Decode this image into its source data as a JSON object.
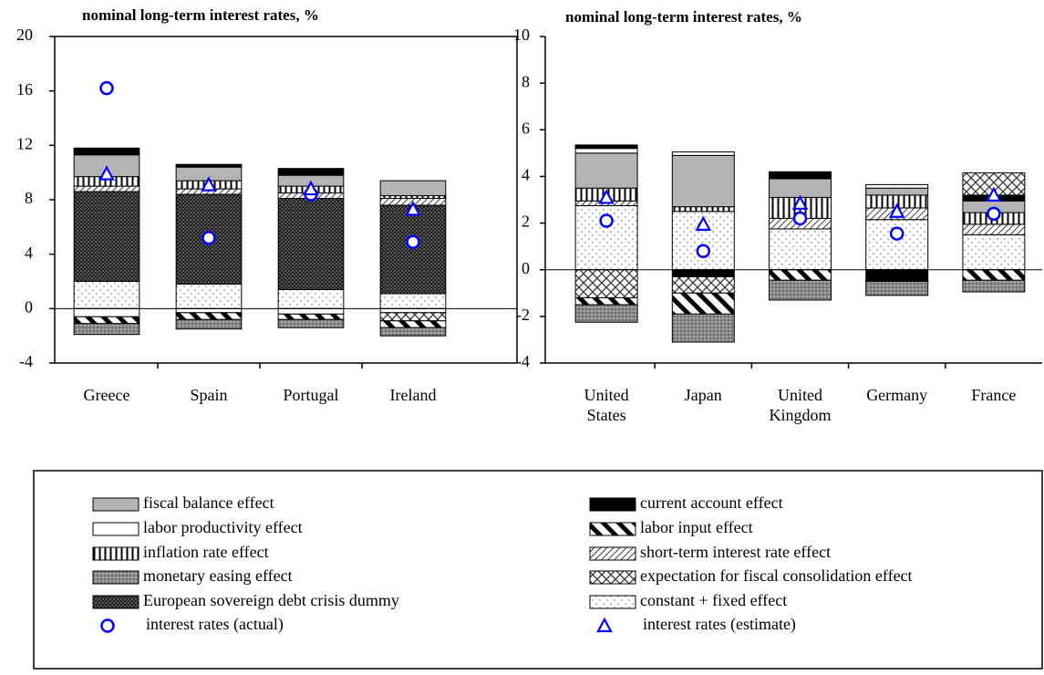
{
  "chart_data": [
    {
      "type": "bar",
      "title": "nominal long-term interest rates, %",
      "categories": [
        "Greece",
        "Spain",
        "Portugal",
        "Ireland"
      ],
      "ylim": [
        -4,
        20
      ],
      "yticks": [
        -4,
        0,
        4,
        8,
        12,
        16,
        20
      ],
      "series": [
        {
          "name": "constant + fixed effect",
          "values": [
            2.0,
            1.8,
            1.4,
            1.1
          ]
        },
        {
          "name": "European sovereign debt crisis dummy",
          "values": [
            6.6,
            6.6,
            6.7,
            6.5
          ]
        },
        {
          "name": "short-term interest rate effect",
          "values": [
            0.4,
            0.4,
            0.4,
            0.5
          ]
        },
        {
          "name": "inflation rate effect",
          "values": [
            0.7,
            0.6,
            0.5,
            0.2
          ]
        },
        {
          "name": "fiscal balance effect",
          "values": [
            1.6,
            1.0,
            0.8,
            1.1
          ]
        },
        {
          "name": "labor productivity effect",
          "values": [
            -0.6,
            -0.3,
            -0.4,
            -0.3
          ]
        },
        {
          "name": "current account effect",
          "values": [
            0.5,
            0.2,
            0.5,
            0
          ]
        },
        {
          "name": "expectation for fiscal consolidation effect",
          "values": [
            0,
            0,
            0,
            -0.6
          ]
        },
        {
          "name": "labor input effect",
          "values": [
            -0.5,
            -0.5,
            -0.4,
            -0.5
          ]
        },
        {
          "name": "monetary easing effect",
          "values": [
            -0.8,
            -0.7,
            -0.6,
            -0.6
          ]
        },
        {
          "name": "interest rates (actual)",
          "marker": "circle",
          "color": "#0000ff",
          "values": [
            16.2,
            5.2,
            8.4,
            4.9
          ]
        },
        {
          "name": "interest rates (estimate)",
          "marker": "triangle",
          "color": "#0000ff",
          "values": [
            9.9,
            9.1,
            8.8,
            7.3
          ]
        }
      ]
    },
    {
      "type": "bar",
      "title": "nominal long-term interest rates, %",
      "categories": [
        "United States",
        "Japan",
        "United Kingdom",
        "Germany",
        "France"
      ],
      "ylim": [
        -4,
        10
      ],
      "yticks": [
        -4,
        -2,
        0,
        2,
        4,
        6,
        8,
        10
      ],
      "series": [
        {
          "name": "constant + fixed effect",
          "values": [
            2.75,
            2.5,
            1.75,
            2.15,
            1.5
          ]
        },
        {
          "name": "European sovereign debt crisis dummy",
          "values": [
            0,
            0,
            0,
            0,
            0
          ]
        },
        {
          "name": "short-term interest rate effect",
          "values": [
            0.2,
            0,
            0.45,
            0.5,
            0.45
          ]
        },
        {
          "name": "inflation rate effect",
          "values": [
            0.55,
            0.2,
            0.9,
            0.55,
            0.5
          ]
        },
        {
          "name": "fiscal balance effect",
          "values": [
            1.5,
            2.2,
            0.8,
            0.3,
            0.5
          ]
        },
        {
          "name": "labor productivity effect",
          "values": [
            0.2,
            0.15,
            0,
            0.15,
            0
          ]
        },
        {
          "name": "current account effect",
          "values": [
            0.15,
            -0.3,
            0.3,
            -0.5,
            0.25
          ]
        },
        {
          "name": "expectation for fiscal consolidation effect",
          "values": [
            -1.2,
            -0.7,
            0,
            0,
            0.95
          ]
        },
        {
          "name": "labor input effect",
          "values": [
            -0.3,
            -0.9,
            -0.45,
            0,
            -0.45
          ]
        },
        {
          "name": "monetary easing effect",
          "values": [
            -0.75,
            -1.2,
            -0.85,
            -0.6,
            -0.5
          ]
        },
        {
          "name": "interest rates (actual)",
          "marker": "circle",
          "color": "#0000ff",
          "values": [
            2.1,
            0.8,
            2.2,
            1.55,
            2.4
          ]
        },
        {
          "name": "interest rates (estimate)",
          "marker": "triangle",
          "color": "#0000ff",
          "values": [
            3.1,
            1.95,
            2.85,
            2.5,
            3.2
          ]
        }
      ]
    }
  ]
}
